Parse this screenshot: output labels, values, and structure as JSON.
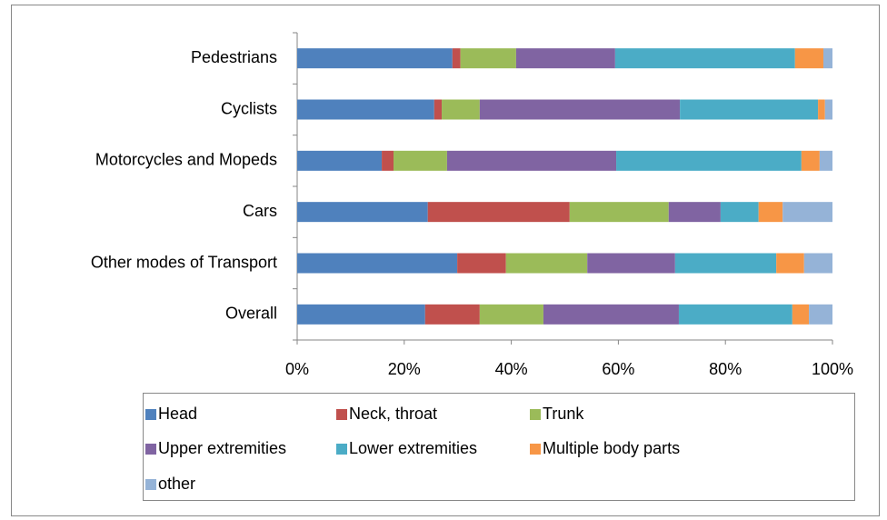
{
  "chart_data": {
    "type": "stacked-bar-horizontal",
    "categories": [
      "Pedestrians",
      "Cyclists",
      "Motorcycles and Mopeds",
      "Cars",
      "Other modes of Transport",
      "Overall"
    ],
    "series": [
      {
        "name": "Head",
        "color": "#4f81bd",
        "values": [
          29.0,
          25.6,
          15.8,
          24.4,
          29.9,
          23.9
        ]
      },
      {
        "name": "Neck, throat",
        "color": "#c0504d",
        "values": [
          1.5,
          1.4,
          2.2,
          26.5,
          9.1,
          10.2
        ]
      },
      {
        "name": "Trunk",
        "color": "#9bbb59",
        "values": [
          10.4,
          7.1,
          10.0,
          18.5,
          15.2,
          11.9
        ]
      },
      {
        "name": "Upper extremities",
        "color": "#8064a2",
        "values": [
          18.5,
          37.4,
          31.6,
          9.7,
          16.4,
          25.3
        ]
      },
      {
        "name": "Lower extremities",
        "color": "#4bacc6",
        "values": [
          33.6,
          25.8,
          34.6,
          7.1,
          18.9,
          21.2
        ]
      },
      {
        "name": "Multiple body parts",
        "color": "#f79646",
        "values": [
          5.3,
          1.3,
          3.4,
          4.5,
          5.2,
          3.1
        ]
      },
      {
        "name": "other",
        "color": "#95b3d7",
        "values": [
          1.7,
          1.4,
          2.4,
          9.3,
          5.3,
          4.4
        ]
      }
    ],
    "xlim": [
      0,
      100
    ],
    "xticks": [
      {
        "value": 0,
        "label": "0%"
      },
      {
        "value": 20,
        "label": "20%"
      },
      {
        "value": 40,
        "label": "40%"
      },
      {
        "value": 60,
        "label": "60%"
      },
      {
        "value": 80,
        "label": "80%"
      },
      {
        "value": 100,
        "label": "100%"
      }
    ],
    "legend": "bottom"
  }
}
